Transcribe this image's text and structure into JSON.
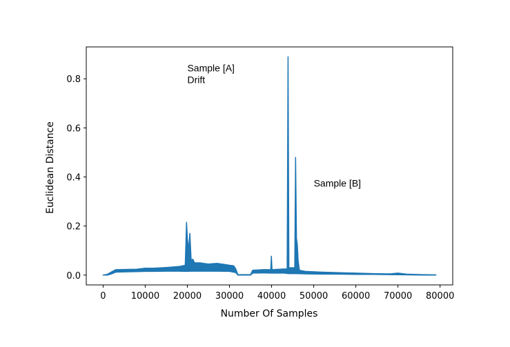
{
  "chart_data": {
    "type": "line",
    "title": "",
    "xlabel": "Number Of Samples",
    "ylabel": "Euclidean Distance",
    "xlim": [
      -4000,
      83000
    ],
    "ylim": [
      -0.04,
      0.93
    ],
    "xticks": [
      0,
      10000,
      20000,
      30000,
      40000,
      50000,
      60000,
      70000,
      80000
    ],
    "xtick_labels": [
      "0",
      "10000",
      "20000",
      "30000",
      "40000",
      "50000",
      "60000",
      "70000",
      "80000"
    ],
    "yticks": [
      0.0,
      0.2,
      0.4,
      0.6,
      0.8
    ],
    "ytick_labels": [
      "0.0",
      "0.2",
      "0.4",
      "0.6",
      "0.8"
    ],
    "grid": false,
    "line_color": "#1f77b4",
    "annotations": [
      {
        "lines": [
          "Sample [A]",
          "Drift"
        ],
        "x": 20000,
        "y": 0.83
      },
      {
        "lines": [
          "Sample [B]"
        ],
        "x": 50000,
        "y": 0.36
      }
    ],
    "series": [
      {
        "lower": [
          [
            0,
            0.0
          ],
          [
            1000,
            0.0
          ],
          [
            2000,
            0.005
          ],
          [
            3000,
            0.012
          ],
          [
            5000,
            0.013
          ],
          [
            8000,
            0.014
          ],
          [
            10000,
            0.015
          ],
          [
            12000,
            0.015
          ],
          [
            15000,
            0.016
          ],
          [
            18000,
            0.016
          ],
          [
            19500,
            0.015
          ],
          [
            21000,
            0.016
          ],
          [
            24000,
            0.016
          ],
          [
            27000,
            0.016
          ],
          [
            30000,
            0.015
          ],
          [
            31500,
            0.01
          ],
          [
            32000,
            0.0
          ],
          [
            35000,
            0.0
          ],
          [
            35500,
            0.008
          ],
          [
            38000,
            0.009
          ],
          [
            40000,
            0.008
          ],
          [
            43000,
            0.008
          ],
          [
            44000,
            0.006
          ],
          [
            46000,
            0.006
          ],
          [
            48000,
            0.005
          ],
          [
            52000,
            0.004
          ],
          [
            56000,
            0.004
          ],
          [
            60000,
            0.003
          ],
          [
            64000,
            0.003
          ],
          [
            68000,
            0.002
          ],
          [
            72000,
            0.001
          ],
          [
            76000,
            0.0
          ],
          [
            79000,
            0.0
          ]
        ],
        "upper": [
          [
            0,
            0.0
          ],
          [
            1000,
            0.003
          ],
          [
            2000,
            0.013
          ],
          [
            3000,
            0.022
          ],
          [
            5000,
            0.023
          ],
          [
            8000,
            0.024
          ],
          [
            10000,
            0.028
          ],
          [
            12000,
            0.028
          ],
          [
            15000,
            0.031
          ],
          [
            18000,
            0.035
          ],
          [
            19500,
            0.04
          ],
          [
            19800,
            0.215
          ],
          [
            20000,
            0.15
          ],
          [
            20300,
            0.1
          ],
          [
            20600,
            0.17
          ],
          [
            20900,
            0.06
          ],
          [
            21300,
            0.065
          ],
          [
            21700,
            0.05
          ],
          [
            23000,
            0.05
          ],
          [
            25000,
            0.045
          ],
          [
            27000,
            0.048
          ],
          [
            29000,
            0.043
          ],
          [
            30000,
            0.04
          ],
          [
            31000,
            0.038
          ],
          [
            31500,
            0.025
          ],
          [
            32000,
            0.002
          ],
          [
            35000,
            0.002
          ],
          [
            35500,
            0.02
          ],
          [
            38000,
            0.022
          ],
          [
            39800,
            0.022
          ],
          [
            39950,
            0.077
          ],
          [
            40100,
            0.022
          ],
          [
            43000,
            0.025
          ],
          [
            43700,
            0.025
          ],
          [
            43900,
            0.89
          ],
          [
            44100,
            0.03
          ],
          [
            45500,
            0.03
          ],
          [
            45700,
            0.48
          ],
          [
            45900,
            0.15
          ],
          [
            46100,
            0.125
          ],
          [
            46300,
            0.06
          ],
          [
            46600,
            0.02
          ],
          [
            48000,
            0.015
          ],
          [
            52000,
            0.012
          ],
          [
            56000,
            0.01
          ],
          [
            60000,
            0.008
          ],
          [
            64000,
            0.006
          ],
          [
            68000,
            0.005
          ],
          [
            70000,
            0.008
          ],
          [
            72000,
            0.004
          ],
          [
            76000,
            0.002
          ],
          [
            79000,
            0.001
          ]
        ]
      }
    ]
  }
}
